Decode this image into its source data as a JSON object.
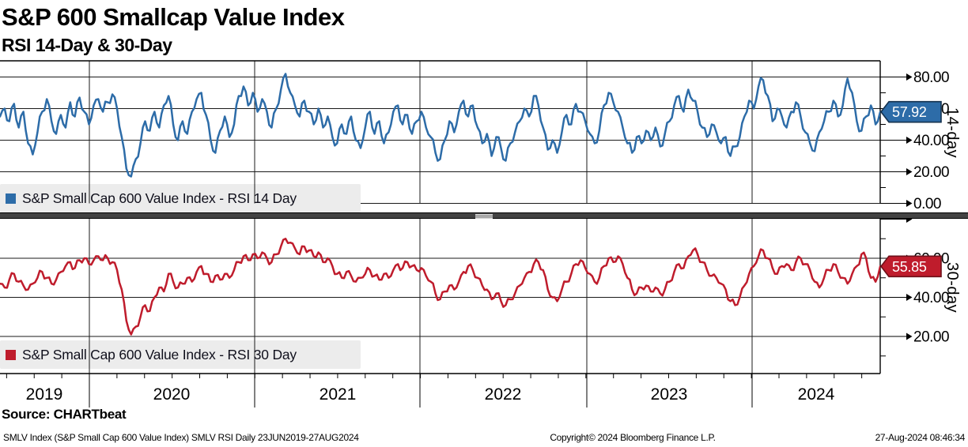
{
  "header": {
    "title": "S&P 600 Smallcap Value Index",
    "subtitle": "RSI 14-Day & 30-Day"
  },
  "source_label": "Source: CHARTbeat",
  "footer": {
    "left": "SMLV Index (S&P Small Cap 600 Value Index) SMLV RSI  Daily 23JUN2019-27AUG2024",
    "center": "Copyright© 2024 Bloomberg Finance L.P.",
    "right": "27-Aug-2024 08:46:34"
  },
  "colors": {
    "rsi14_blue": "#2d6ca8",
    "rsi30_red": "#bf1c2c",
    "badge14_border": "#14324f",
    "badge30_border": "#6e1019",
    "grid": "#1a1a1a",
    "frame": "#000000",
    "legend_bg": "#ececec",
    "divider_bar": "#434343"
  },
  "x_axis": {
    "years": [
      "2019",
      "2020",
      "2021",
      "2022",
      "2023",
      "2024"
    ]
  },
  "panels": [
    {
      "id": "rsi14",
      "side_label": "14-day",
      "legend": "S&P Small Cap 600 Value Index - RSI 14 Day",
      "last_value": "57.92",
      "y_ticks": [
        "80.00",
        "60.00",
        "40.00",
        "20.00",
        "0.00"
      ]
    },
    {
      "id": "rsi30",
      "side_label": "30-day",
      "legend": "S&P Small Cap 600 Value Index - RSI 30 Day",
      "last_value": "55.85",
      "y_ticks": [
        "60.00",
        "40.00",
        "20.00"
      ]
    }
  ],
  "chart_data": [
    {
      "type": "line",
      "name": "S&P Small Cap 600 Value Index - RSI 14 Day",
      "color": "#2d6ca8",
      "x_range": [
        "23JUN2019",
        "27AUG2024"
      ],
      "x_year_ticks": [
        "2019",
        "2020",
        "2021",
        "2022",
        "2023",
        "2024"
      ],
      "ylim": [
        0,
        90
      ],
      "y_major_gridlines": [
        0,
        20,
        40,
        60,
        80
      ],
      "y_minor_ticks": [
        10,
        30,
        50,
        70
      ],
      "grid": true,
      "legend_position": "bottom-left-inside",
      "last_value": 57.92,
      "approx": true,
      "values": [
        55,
        60,
        52,
        63,
        48,
        58,
        38,
        31,
        45,
        58,
        66,
        52,
        44,
        56,
        48,
        64,
        55,
        67,
        58,
        50,
        62,
        66,
        58,
        64,
        69,
        60,
        42,
        22,
        17,
        28,
        38,
        52,
        46,
        58,
        48,
        62,
        68,
        50,
        40,
        52,
        44,
        58,
        66,
        70,
        56,
        40,
        32,
        46,
        55,
        42,
        50,
        68,
        74,
        62,
        70,
        58,
        66,
        58,
        48,
        60,
        72,
        82,
        70,
        62,
        55,
        65,
        58,
        50,
        60,
        48,
        55,
        42,
        38,
        50,
        44,
        55,
        40,
        35,
        48,
        58,
        44,
        52,
        38,
        45,
        58,
        62,
        50,
        56,
        44,
        52,
        58,
        48,
        42,
        32,
        28,
        40,
        52,
        45,
        58,
        65,
        55,
        62,
        48,
        38,
        44,
        30,
        42,
        35,
        27,
        38,
        45,
        52,
        60,
        55,
        68,
        62,
        48,
        34,
        40,
        32,
        45,
        56,
        50,
        63,
        58,
        52,
        44,
        38,
        46,
        62,
        70,
        64,
        58,
        48,
        38,
        32,
        42,
        38,
        46,
        40,
        48,
        36,
        44,
        52,
        62,
        68,
        58,
        72,
        65,
        58,
        48,
        42,
        50,
        45,
        38,
        42,
        30,
        36,
        42,
        55,
        65,
        60,
        74,
        78,
        68,
        52,
        60,
        55,
        48,
        58,
        64,
        55,
        45,
        38,
        33,
        45,
        52,
        58,
        65,
        55,
        62,
        79,
        70,
        52,
        46,
        55,
        62,
        50,
        57.92
      ]
    },
    {
      "type": "line",
      "name": "S&P Small Cap 600 Value Index - RSI 30 Day",
      "color": "#bf1c2c",
      "x_range": [
        "23JUN2019",
        "27AUG2024"
      ],
      "x_year_ticks": [
        "2019",
        "2020",
        "2021",
        "2022",
        "2023",
        "2024"
      ],
      "ylim": [
        1,
        80
      ],
      "y_major_gridlines": [
        20,
        40,
        60
      ],
      "y_minor_ticks": [
        10,
        30,
        50,
        70
      ],
      "grid": true,
      "legend_position": "bottom-left-inside",
      "last_value": 55.85,
      "approx": true,
      "values": [
        47,
        45,
        49,
        52,
        48,
        46,
        44,
        47,
        50,
        53,
        50,
        47,
        49,
        53,
        56,
        58,
        55,
        59,
        60,
        57,
        59,
        61,
        59,
        60,
        58,
        54,
        44,
        28,
        21,
        25,
        30,
        36,
        33,
        40,
        45,
        43,
        52,
        48,
        45,
        47,
        50,
        48,
        53,
        56,
        52,
        48,
        51,
        49,
        52,
        50,
        54,
        58,
        61,
        59,
        62,
        60,
        63,
        60,
        58,
        62,
        66,
        70,
        68,
        65,
        62,
        66,
        64,
        61,
        63,
        58,
        60,
        56,
        52,
        50,
        53,
        51,
        48,
        50,
        52,
        54,
        51,
        49,
        52,
        50,
        54,
        57,
        55,
        58,
        56,
        54,
        55,
        51,
        48,
        42,
        39,
        43,
        46,
        44,
        48,
        53,
        56,
        54,
        50,
        46,
        44,
        39,
        42,
        38,
        36,
        39,
        42,
        46,
        50,
        53,
        57,
        58,
        54,
        44,
        40,
        38,
        44,
        48,
        52,
        57,
        59,
        55,
        52,
        48,
        50,
        56,
        60,
        58,
        61,
        57,
        50,
        44,
        42,
        45,
        46,
        43,
        45,
        42,
        44,
        48,
        53,
        57,
        55,
        61,
        64,
        62,
        58,
        54,
        51,
        50,
        47,
        44,
        38,
        36,
        40,
        46,
        52,
        56,
        61,
        64,
        60,
        55,
        52,
        56,
        57,
        54,
        58,
        60,
        57,
        54,
        48,
        45,
        50,
        54,
        57,
        53,
        50,
        47,
        52,
        56,
        62,
        60,
        50,
        48,
        55.85
      ]
    }
  ]
}
